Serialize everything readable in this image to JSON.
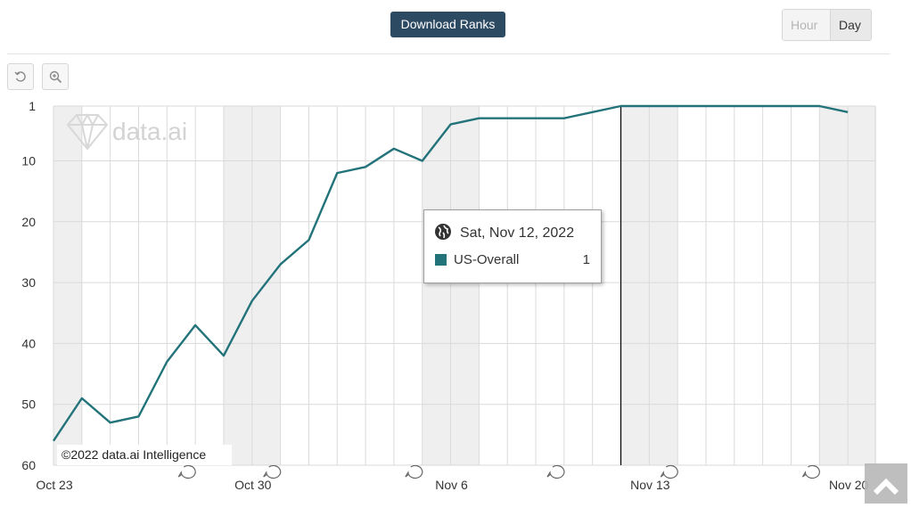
{
  "toolbar": {
    "download_label": "Download Ranks",
    "hour_label": "Hour",
    "day_label": "Day"
  },
  "tools": {
    "reset_icon": "reset-icon",
    "zoom_icon": "zoom-in-icon"
  },
  "watermark": "data.ai",
  "copyright": "©2022 data.ai Intelligence",
  "tooltip": {
    "date": "Sat, Nov 12, 2022",
    "series": "US-Overall",
    "value": "1"
  },
  "colors": {
    "series": "#23737a",
    "button": "#2d4a63"
  },
  "chart_data": {
    "type": "line",
    "title": "",
    "xlabel": "",
    "ylabel": "",
    "y_reversed": true,
    "ylim": [
      1,
      60
    ],
    "yticks": [
      1,
      10,
      20,
      30,
      40,
      50,
      60
    ],
    "xtick_labels": [
      "Oct 23",
      "Oct 30",
      "Nov 6",
      "Nov 13",
      "Nov 20"
    ],
    "grid": true,
    "x": [
      "2022-10-23",
      "2022-10-24",
      "2022-10-25",
      "2022-10-26",
      "2022-10-27",
      "2022-10-28",
      "2022-10-29",
      "2022-10-30",
      "2022-10-31",
      "2022-11-01",
      "2022-11-02",
      "2022-11-03",
      "2022-11-04",
      "2022-11-05",
      "2022-11-06",
      "2022-11-07",
      "2022-11-08",
      "2022-11-09",
      "2022-11-10",
      "2022-11-11",
      "2022-11-12",
      "2022-11-13",
      "2022-11-14",
      "2022-11-15",
      "2022-11-16",
      "2022-11-17",
      "2022-11-18",
      "2022-11-19",
      "2022-11-20"
    ],
    "series": [
      {
        "name": "US-Overall",
        "values": [
          56,
          49,
          53,
          52,
          43,
          37,
          42,
          33,
          27,
          23,
          12,
          11,
          8,
          10,
          4,
          3,
          3,
          3,
          3,
          2,
          1,
          1,
          1,
          1,
          1,
          1,
          1,
          1,
          2
        ]
      }
    ],
    "weekend_dates": [
      "2022-10-23",
      "2022-10-29",
      "2022-10-30",
      "2022-11-05",
      "2022-11-06",
      "2022-11-12",
      "2022-11-13",
      "2022-11-19",
      "2022-11-20"
    ],
    "annotation_dates": [
      "2022-10-27",
      "2022-10-30",
      "2022-11-04",
      "2022-11-09",
      "2022-11-13",
      "2022-11-18"
    ],
    "crosshair_date": "2022-11-12"
  }
}
